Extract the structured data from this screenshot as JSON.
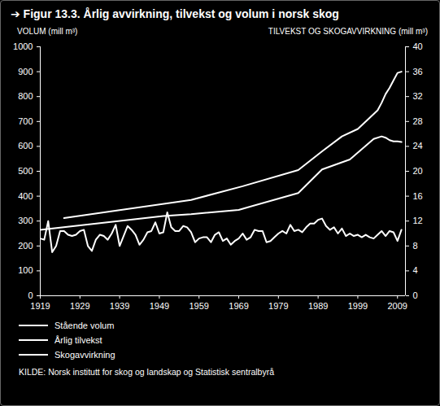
{
  "chart_data": {
    "type": "line",
    "title": "➔ Figur 13.3. Årlig avvirkning, tilvekst og volum i norsk skog",
    "ylabel": "VOLUM (mill m³)",
    "y2label": "TILVEKST OG SKOGAVVIRKNING (mill m³)",
    "source": "KILDE: Norsk institutt for skog og landskap og Statistisk sentralbyrå",
    "legend": "bottom",
    "grid": false,
    "xlim": [
      1919,
      2011
    ],
    "xticks": [
      1919,
      1929,
      1939,
      1949,
      1959,
      1969,
      1979,
      1989,
      1999,
      2009
    ],
    "ylim": [
      0,
      1000
    ],
    "yticks": [
      0,
      100,
      200,
      300,
      400,
      500,
      600,
      700,
      800,
      900,
      1000
    ],
    "y2lim": [
      0,
      40
    ],
    "y2ticks": [
      0,
      4,
      8,
      12,
      16,
      20,
      24,
      28,
      32,
      36,
      40
    ],
    "series": [
      {
        "name": "Stående volum",
        "color": "#ffffff",
        "x": [
          1925,
          1957,
          1970,
          1984,
          1990,
          1995,
          1999,
          2002,
          2004,
          2005,
          2006,
          2007,
          2008,
          2009,
          2010
        ],
        "values": [
          312,
          385,
          440,
          505,
          580,
          640,
          670,
          715,
          745,
          775,
          810,
          835,
          865,
          895,
          900
        ]
      },
      {
        "name": "Årlig tilvekst",
        "color": "#ffffff",
        "axis": "y2",
        "x": [
          1919,
          1950,
          1957,
          1969,
          1984,
          1990,
          1997,
          2003,
          2005,
          2006,
          2007,
          2008,
          2009,
          2010
        ],
        "values": [
          10.6,
          12.8,
          13.1,
          13.8,
          16.5,
          20.3,
          21.9,
          25.2,
          25.6,
          25.4,
          25.0,
          24.8,
          24.8,
          24.7
        ]
      },
      {
        "name": "Skogavvirkning",
        "color": "#ffffff",
        "axis": "y2",
        "x": [
          1919,
          1920,
          1921,
          1922,
          1923,
          1924,
          1925,
          1926,
          1927,
          1928,
          1929,
          1930,
          1931,
          1932,
          1933,
          1934,
          1935,
          1936,
          1937,
          1938,
          1939,
          1940,
          1941,
          1942,
          1943,
          1944,
          1945,
          1946,
          1947,
          1948,
          1949,
          1950,
          1951,
          1952,
          1953,
          1954,
          1955,
          1956,
          1957,
          1958,
          1959,
          1960,
          1961,
          1962,
          1963,
          1964,
          1965,
          1966,
          1967,
          1968,
          1969,
          1970,
          1971,
          1972,
          1973,
          1974,
          1975,
          1976,
          1977,
          1978,
          1979,
          1980,
          1981,
          1982,
          1983,
          1984,
          1985,
          1986,
          1987,
          1988,
          1989,
          1990,
          1991,
          1992,
          1993,
          1994,
          1995,
          1996,
          1997,
          1998,
          1999,
          2000,
          2001,
          2002,
          2003,
          2004,
          2005,
          2006,
          2007,
          2008,
          2009,
          2010
        ],
        "values": [
          9.2,
          9.0,
          12.0,
          7.0,
          8.0,
          10.4,
          10.4,
          9.8,
          9.6,
          9.8,
          10.4,
          10.6,
          8.0,
          7.2,
          9.0,
          9.8,
          9.6,
          9.0,
          10.0,
          11.4,
          8.0,
          9.6,
          11.2,
          10.6,
          9.8,
          8.2,
          9.0,
          10.2,
          10.4,
          11.8,
          10.0,
          10.2,
          13.4,
          11.0,
          10.4,
          10.4,
          11.2,
          11.0,
          10.2,
          8.6,
          9.2,
          9.4,
          9.4,
          8.6,
          9.8,
          10.2,
          8.8,
          9.2,
          8.2,
          8.8,
          9.2,
          10.0,
          9.0,
          9.4,
          10.6,
          10.4,
          10.4,
          8.6,
          8.8,
          9.4,
          10.0,
          10.4,
          10.0,
          11.4,
          10.4,
          10.6,
          10.2,
          11.0,
          11.6,
          11.6,
          12.2,
          12.4,
          11.2,
          10.6,
          11.0,
          10.0,
          10.8,
          9.6,
          10.0,
          9.6,
          9.8,
          9.4,
          9.8,
          9.4,
          9.2,
          9.8,
          10.4,
          9.6,
          10.4,
          10.2,
          8.8,
          10.6
        ]
      }
    ]
  }
}
